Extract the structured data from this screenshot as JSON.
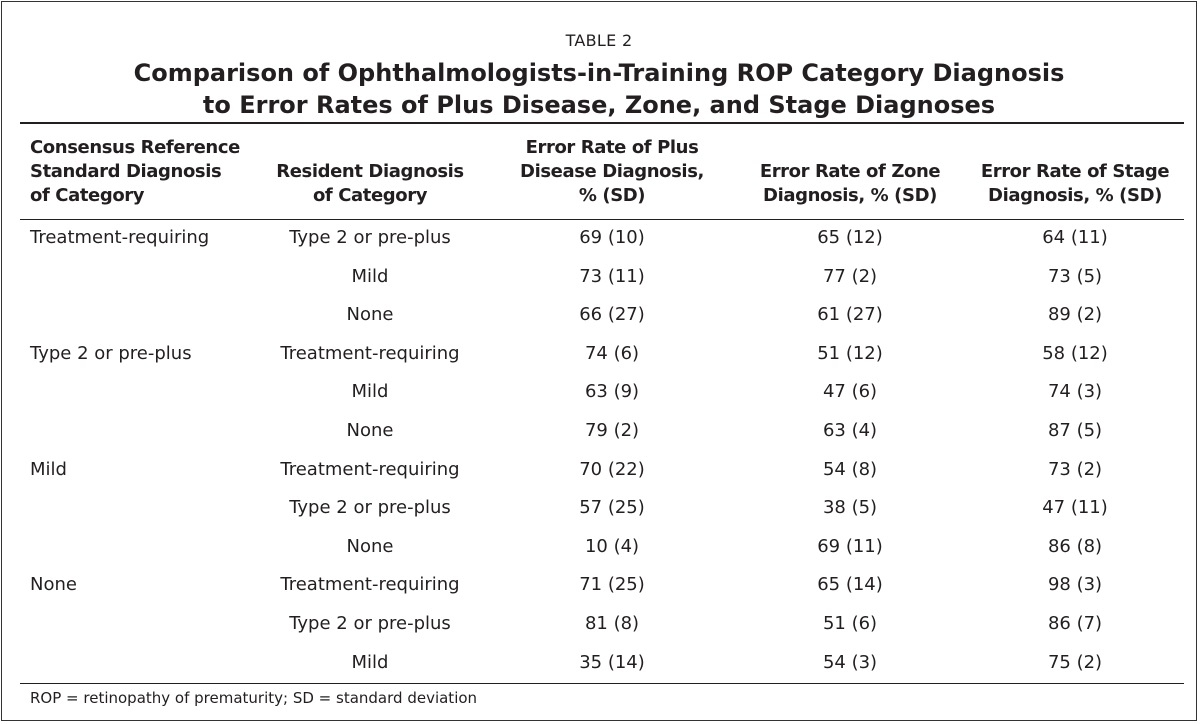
{
  "table": {
    "label": "TABLE 2",
    "title_line1": "Comparison of Ophthalmologists-in-Training ROP Category Diagnosis",
    "title_line2": "to Error Rates of Plus Disease, Zone, and Stage Diagnoses",
    "headers": [
      [
        "Consensus Reference",
        "Standard Diagnosis",
        "of Category"
      ],
      [
        "Resident Diagnosis",
        "of Category"
      ],
      [
        "Error Rate of Plus",
        "Disease Diagnosis,",
        "% (SD)"
      ],
      [
        "Error Rate of Zone",
        "Diagnosis, % (SD)"
      ],
      [
        "Error Rate of Stage",
        "Diagnosis, % (SD)"
      ]
    ],
    "rows": [
      [
        "Treatment-requiring",
        "Type 2 or pre-plus",
        "69 (10)",
        "65 (12)",
        "64 (11)"
      ],
      [
        "",
        "Mild",
        "73 (11)",
        "77 (2)",
        "73 (5)"
      ],
      [
        "",
        "None",
        "66 (27)",
        "61 (27)",
        "89 (2)"
      ],
      [
        "Type 2 or pre-plus",
        "Treatment-requiring",
        "74 (6)",
        "51 (12)",
        "58 (12)"
      ],
      [
        "",
        "Mild",
        "63 (9)",
        "47 (6)",
        "74 (3)"
      ],
      [
        "",
        "None",
        "79 (2)",
        "63 (4)",
        "87 (5)"
      ],
      [
        "Mild",
        "Treatment-requiring",
        "70 (22)",
        "54 (8)",
        "73 (2)"
      ],
      [
        "",
        "Type 2 or pre-plus",
        "57 (25)",
        "38 (5)",
        "47 (11)"
      ],
      [
        "",
        "None",
        "10 (4)",
        "69 (11)",
        "86 (8)"
      ],
      [
        "None",
        "Treatment-requiring",
        "71 (25)",
        "65 (14)",
        "98 (3)"
      ],
      [
        "",
        "Type 2 or pre-plus",
        "81 (8)",
        "51 (6)",
        "86 (7)"
      ],
      [
        "",
        "Mild",
        "35 (14)",
        "54 (3)",
        "75 (2)"
      ]
    ],
    "footnote": "ROP = retinopathy of prematurity; SD = standard deviation"
  }
}
